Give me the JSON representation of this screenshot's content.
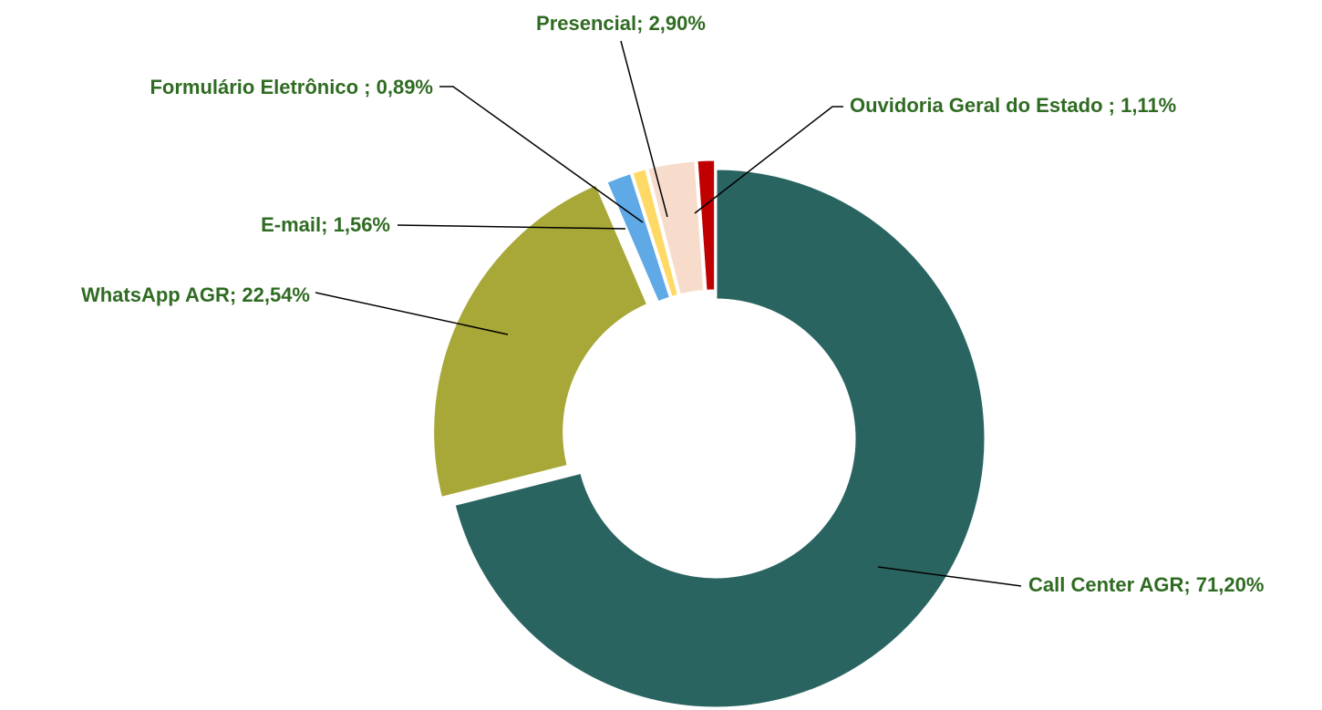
{
  "chart_data": {
    "type": "donut",
    "categories": [
      "Call Center AGR;",
      "WhatsApp AGR;",
      "E-mail;",
      "Formulário Eletrônico ;",
      "Presencial;",
      "Ouvidoria Geral do Estado ;"
    ],
    "values": [
      71.2,
      22.54,
      1.56,
      0.89,
      2.9,
      1.11
    ],
    "value_labels": [
      "71,20%",
      "22,54%",
      "1,56%",
      "0,89%",
      "2,90%",
      "1,11%"
    ],
    "colors": [
      "#2a6461",
      "#a8a838",
      "#5ea9e6",
      "#ffd966",
      "#f8dccb",
      "#c00000"
    ]
  }
}
